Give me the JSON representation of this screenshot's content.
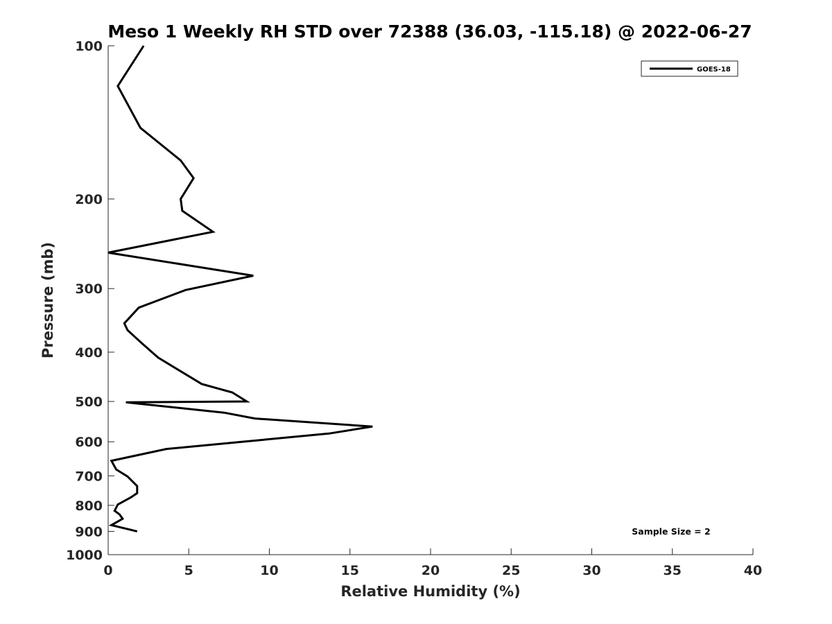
{
  "chart_data": {
    "type": "line",
    "title": "Meso 1 Weekly RH STD over 72388 (36.03, -115.18) @ 2022-06-27",
    "xlabel": "Relative Humidity (%)",
    "ylabel": "Pressure (mb)",
    "xlim": [
      0,
      40
    ],
    "ylim": [
      1000,
      100
    ],
    "y_scale": "log",
    "x_ticks": [
      0,
      5,
      10,
      15,
      20,
      25,
      30,
      35,
      40
    ],
    "x_tick_labels": [
      "0",
      "5",
      "10",
      "15",
      "20",
      "25",
      "30",
      "35",
      "40"
    ],
    "y_ticks": [
      100,
      200,
      300,
      400,
      500,
      600,
      700,
      800,
      900,
      1000
    ],
    "y_tick_labels": [
      "100",
      "200",
      "300",
      "400",
      "500",
      "600",
      "700",
      "800",
      "900",
      "1000"
    ],
    "grid": false,
    "legend_position": "top-right",
    "annotation": "Sample Size = 2",
    "series": [
      {
        "name": "GOES-18",
        "color": "#000000",
        "x": [
          2.2,
          0.6,
          2.0,
          4.5,
          5.3,
          4.5,
          4.6,
          6.5,
          0.0,
          9.0,
          4.8,
          1.9,
          1.0,
          1.2,
          2.0,
          3.1,
          4.7,
          5.8,
          7.7,
          8.6,
          1.1,
          7.2,
          9.1,
          16.4,
          13.7,
          3.6,
          0.2,
          0.5,
          1.2,
          1.8,
          1.8,
          1.4,
          0.6,
          0.4,
          0.7,
          0.9,
          0.2,
          1.8
        ],
        "y": [
          100,
          120,
          145,
          168,
          182,
          200,
          211,
          232,
          255,
          283,
          302,
          327,
          351,
          362,
          382,
          410,
          440,
          462,
          480,
          500,
          502,
          526,
          540,
          560,
          578,
          620,
          654,
          680,
          702,
          733,
          757,
          772,
          797,
          820,
          833,
          850,
          875,
          900
        ]
      }
    ]
  }
}
